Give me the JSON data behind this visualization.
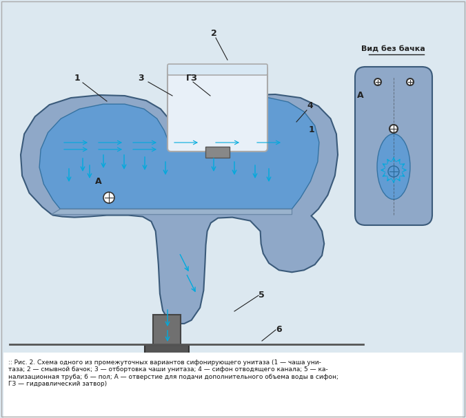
{
  "bg_color": "#dce8f0",
  "title_caption": ":: Рис. 2. Схема одного из промежуточных вариантов сифонирующего унитаза (1 — чаша унитаза; 2 — смывной бачок; 3 — отбортовка чаши унитаза; 4 — сифон отводящего канала; 5 — канализационная труба; 6 — пол; А — отверстие для подачи дополнительного объема воды в сифон; ГЗ — гидравлический затвор)",
  "label_1a": "1",
  "label_2": "2",
  "label_3": "3",
  "label_GZ": "ГЗ",
  "label_4": "4",
  "label_1b": "1",
  "label_A_left": "А",
  "label_5": "5",
  "label_6": "6",
  "label_A_right": "А",
  "label_vid": "Вид без бачка",
  "outer_body_color": "#8fa8c8",
  "inner_water_color": "#5b9bd5",
  "rim_color": "#a0b8d0",
  "tank_fill": "#e8f0f8",
  "tank_border": "#999999",
  "floor_color": "#555555",
  "drain_color": "#666666",
  "arrow_color": "#00aadd",
  "label_color": "#222222",
  "line_color": "#333333",
  "top_view_body": "#a0a8b0",
  "top_view_water": "#6ab0e0",
  "white_fill": "#f0f4f8"
}
